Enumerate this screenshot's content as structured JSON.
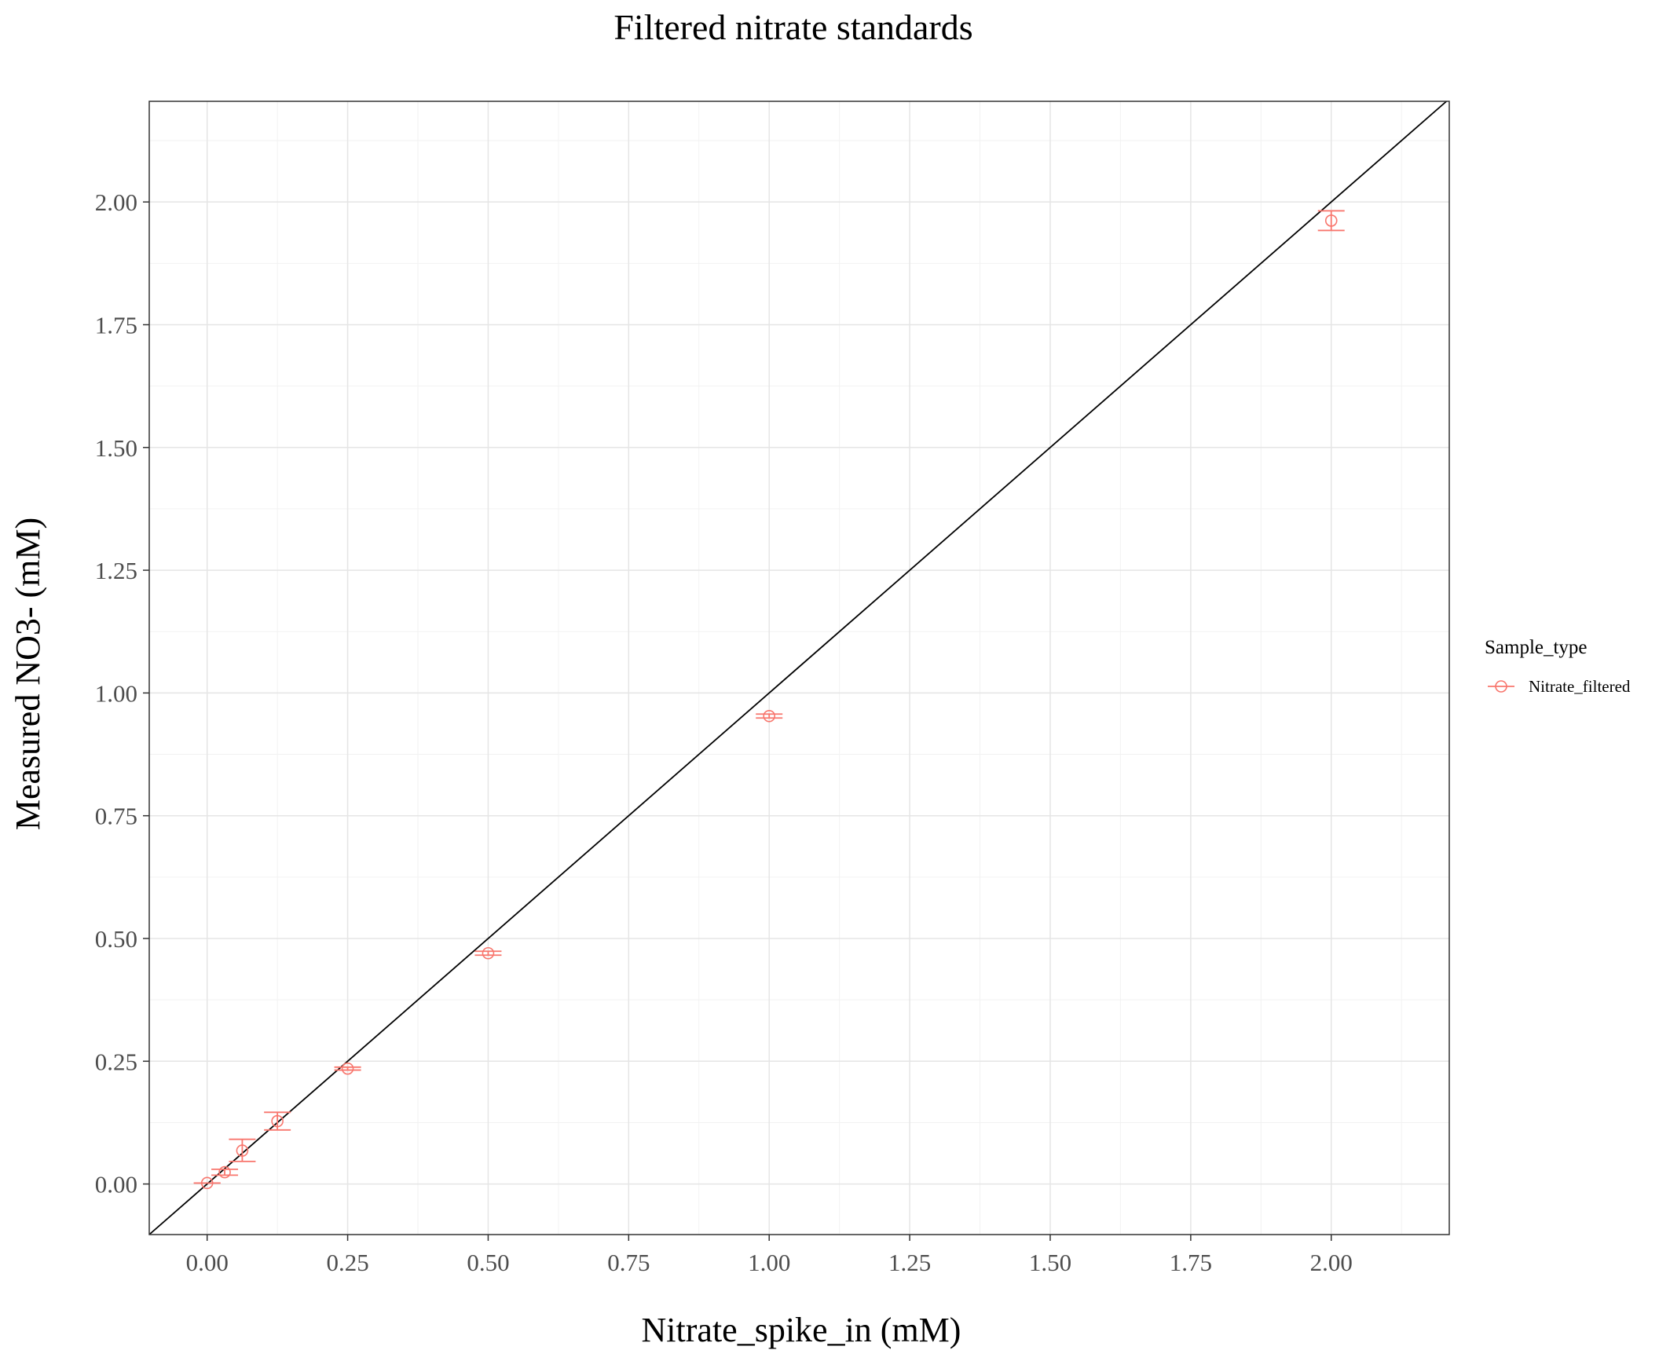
{
  "chart_data": {
    "type": "scatter",
    "title": "Filtered nitrate standards",
    "xlabel": "Nitrate_spike_in (mM)",
    "ylabel": "Measured NO3- (mM)",
    "xlim": [
      -0.103,
      2.21
    ],
    "ylim": [
      -0.103,
      2.205
    ],
    "x_ticks": [
      0,
      0.25,
      0.5,
      0.75,
      1,
      1.25,
      1.5,
      1.75,
      2
    ],
    "x_tick_labels": [
      "0.00",
      "0.25",
      "0.50",
      "0.75",
      "1.00",
      "1.25",
      "1.50",
      "1.75",
      "2.00"
    ],
    "y_ticks": [
      0,
      0.25,
      0.5,
      0.75,
      1,
      1.25,
      1.5,
      1.75,
      2
    ],
    "y_tick_labels": [
      "0.00",
      "0.25",
      "0.50",
      "0.75",
      "1.00",
      "1.25",
      "1.50",
      "1.75",
      "2.00"
    ],
    "grid": true,
    "reference_line": {
      "slope": 1,
      "intercept": 0,
      "color": "#000000"
    },
    "legend": {
      "title": "Sample_type",
      "position": "right",
      "entries": [
        "Nitrate_filtered"
      ]
    },
    "series": [
      {
        "name": "Nitrate_filtered",
        "color": "#F8766D",
        "marker": "open-circle",
        "points": [
          {
            "x": 0,
            "y": 0.002,
            "ymin": 0.002,
            "ymax": 0.002
          },
          {
            "x": 0.03125,
            "y": 0.024,
            "ymin": 0.018,
            "ymax": 0.03
          },
          {
            "x": 0.0625,
            "y": 0.068,
            "ymin": 0.046,
            "ymax": 0.091
          },
          {
            "x": 0.125,
            "y": 0.128,
            "ymin": 0.11,
            "ymax": 0.146
          },
          {
            "x": 0.25,
            "y": 0.235,
            "ymin": 0.232,
            "ymax": 0.238
          },
          {
            "x": 0.5,
            "y": 0.47,
            "ymin": 0.466,
            "ymax": 0.474
          },
          {
            "x": 1,
            "y": 0.953,
            "ymin": 0.949,
            "ymax": 0.957
          },
          {
            "x": 2,
            "y": 1.962,
            "ymin": 1.942,
            "ymax": 1.982
          }
        ]
      }
    ]
  }
}
